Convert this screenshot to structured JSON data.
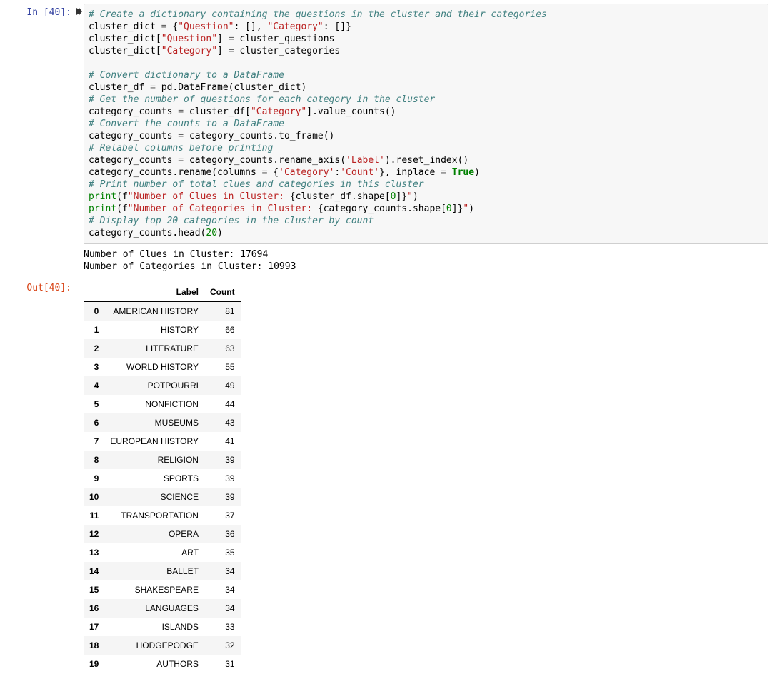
{
  "cell": {
    "in_prompt": "In [40]:",
    "out_prompt": "Out[40]:",
    "exec_count": 40,
    "stdout_line1": "Number of Clues in Cluster: 17694",
    "stdout_line2": "Number of Categories in Cluster: 10993"
  },
  "code": {
    "lines": [
      {
        "t": "com",
        "s": "# Create a dictionary containing the questions in the cluster and their categories"
      },
      {
        "t": "raw",
        "parts": [
          {
            "c": "",
            "s": "cluster_dict "
          },
          {
            "c": "op",
            "s": "="
          },
          {
            "c": "",
            "s": " {"
          },
          {
            "c": "str",
            "s": "\"Question\""
          },
          {
            "c": "",
            "s": ": [], "
          },
          {
            "c": "str",
            "s": "\"Category\""
          },
          {
            "c": "",
            "s": ": []}"
          }
        ]
      },
      {
        "t": "raw",
        "parts": [
          {
            "c": "",
            "s": "cluster_dict["
          },
          {
            "c": "str",
            "s": "\"Question\""
          },
          {
            "c": "",
            "s": "] "
          },
          {
            "c": "op",
            "s": "="
          },
          {
            "c": "",
            "s": " cluster_questions"
          }
        ]
      },
      {
        "t": "raw",
        "parts": [
          {
            "c": "",
            "s": "cluster_dict["
          },
          {
            "c": "str",
            "s": "\"Category\""
          },
          {
            "c": "",
            "s": "] "
          },
          {
            "c": "op",
            "s": "="
          },
          {
            "c": "",
            "s": " cluster_categories"
          }
        ]
      },
      {
        "t": "blank"
      },
      {
        "t": "com",
        "s": "# Convert dictionary to a DataFrame"
      },
      {
        "t": "raw",
        "parts": [
          {
            "c": "",
            "s": "cluster_df "
          },
          {
            "c": "op",
            "s": "="
          },
          {
            "c": "",
            "s": " pd.DataFrame(cluster_dict)"
          }
        ]
      },
      {
        "t": "com",
        "s": "# Get the number of questions for each category in the cluster"
      },
      {
        "t": "raw",
        "parts": [
          {
            "c": "",
            "s": "category_counts "
          },
          {
            "c": "op",
            "s": "="
          },
          {
            "c": "",
            "s": " cluster_df["
          },
          {
            "c": "str",
            "s": "\"Category\""
          },
          {
            "c": "",
            "s": "].value_counts()"
          }
        ]
      },
      {
        "t": "com",
        "s": "# Convert the counts to a DataFrame"
      },
      {
        "t": "raw",
        "parts": [
          {
            "c": "",
            "s": "category_counts "
          },
          {
            "c": "op",
            "s": "="
          },
          {
            "c": "",
            "s": " category_counts.to_frame()"
          }
        ]
      },
      {
        "t": "com",
        "s": "# Relabel columns before printing"
      },
      {
        "t": "raw",
        "parts": [
          {
            "c": "",
            "s": "category_counts "
          },
          {
            "c": "op",
            "s": "="
          },
          {
            "c": "",
            "s": " category_counts.rename_axis("
          },
          {
            "c": "str",
            "s": "'Label'"
          },
          {
            "c": "",
            "s": ").reset_index()"
          }
        ]
      },
      {
        "t": "raw",
        "parts": [
          {
            "c": "",
            "s": "category_counts.rename(columns "
          },
          {
            "c": "op",
            "s": "="
          },
          {
            "c": "",
            "s": " {"
          },
          {
            "c": "str",
            "s": "'Category'"
          },
          {
            "c": "",
            "s": ":"
          },
          {
            "c": "str",
            "s": "'Count'"
          },
          {
            "c": "",
            "s": "}, inplace "
          },
          {
            "c": "op",
            "s": "="
          },
          {
            "c": "",
            "s": " "
          },
          {
            "c": "kw",
            "s": "True"
          },
          {
            "c": "",
            "s": ")"
          }
        ]
      },
      {
        "t": "com",
        "s": "# Print number of total clues and categories in this cluster"
      },
      {
        "t": "raw",
        "parts": [
          {
            "c": "bi",
            "s": "print"
          },
          {
            "c": "",
            "s": "(f"
          },
          {
            "c": "str",
            "s": "\"Number of Clues in Cluster: "
          },
          {
            "c": "",
            "s": "{cluster_df.shape["
          },
          {
            "c": "num",
            "s": "0"
          },
          {
            "c": "",
            "s": "]}"
          },
          {
            "c": "str",
            "s": "\""
          },
          {
            "c": "",
            "s": ")"
          }
        ]
      },
      {
        "t": "raw",
        "parts": [
          {
            "c": "bi",
            "s": "print"
          },
          {
            "c": "",
            "s": "(f"
          },
          {
            "c": "str",
            "s": "\"Number of Categories in Cluster: "
          },
          {
            "c": "",
            "s": "{category_counts.shape["
          },
          {
            "c": "num",
            "s": "0"
          },
          {
            "c": "",
            "s": "]}"
          },
          {
            "c": "str",
            "s": "\""
          },
          {
            "c": "",
            "s": ")"
          }
        ]
      },
      {
        "t": "com",
        "s": "# Display top 20 categories in the cluster by count"
      },
      {
        "t": "raw",
        "parts": [
          {
            "c": "",
            "s": "category_counts.head("
          },
          {
            "c": "num",
            "s": "20"
          },
          {
            "c": "",
            "s": ")"
          }
        ]
      }
    ]
  },
  "dataframe": {
    "columns": [
      "Label",
      "Count"
    ],
    "header_bg": "#ffffff",
    "row_odd_bg": "#f5f5f5",
    "row_even_bg": "#ffffff",
    "rows": [
      {
        "idx": "0",
        "label": "AMERICAN HISTORY",
        "count": 81
      },
      {
        "idx": "1",
        "label": "HISTORY",
        "count": 66
      },
      {
        "idx": "2",
        "label": "LITERATURE",
        "count": 63
      },
      {
        "idx": "3",
        "label": "WORLD HISTORY",
        "count": 55
      },
      {
        "idx": "4",
        "label": "POTPOURRI",
        "count": 49
      },
      {
        "idx": "5",
        "label": "NONFICTION",
        "count": 44
      },
      {
        "idx": "6",
        "label": "MUSEUMS",
        "count": 43
      },
      {
        "idx": "7",
        "label": "EUROPEAN HISTORY",
        "count": 41
      },
      {
        "idx": "8",
        "label": "RELIGION",
        "count": 39
      },
      {
        "idx": "9",
        "label": "SPORTS",
        "count": 39
      },
      {
        "idx": "10",
        "label": "SCIENCE",
        "count": 39
      },
      {
        "idx": "11",
        "label": "TRANSPORTATION",
        "count": 37
      },
      {
        "idx": "12",
        "label": "OPERA",
        "count": 36
      },
      {
        "idx": "13",
        "label": "ART",
        "count": 35
      },
      {
        "idx": "14",
        "label": "BALLET",
        "count": 34
      },
      {
        "idx": "15",
        "label": "SHAKESPEARE",
        "count": 34
      },
      {
        "idx": "16",
        "label": "LANGUAGES",
        "count": 34
      },
      {
        "idx": "17",
        "label": "ISLANDS",
        "count": 33
      },
      {
        "idx": "18",
        "label": "HODGEPODGE",
        "count": 32
      },
      {
        "idx": "19",
        "label": "AUTHORS",
        "count": 31
      }
    ]
  },
  "colors": {
    "comment": "#408080",
    "string": "#BA2121",
    "operator": "#666666",
    "number": "#008000",
    "keyword": "#008000",
    "builtin": "#008000",
    "in_prompt": "#303F9F",
    "out_prompt": "#D84315",
    "code_bg": "#f7f7f7",
    "code_border": "#cfcfcf"
  }
}
